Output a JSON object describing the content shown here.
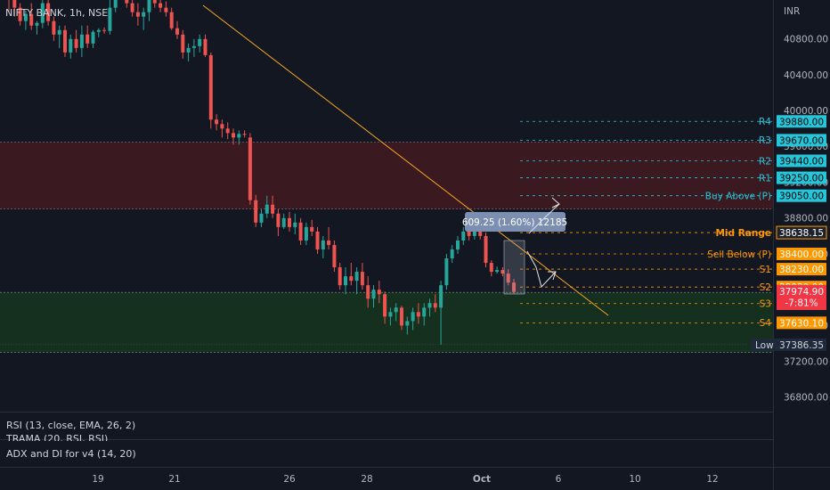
{
  "header": {
    "symbol": "NIFTY BANK, 1h, NSE",
    "currency": "INR"
  },
  "panes": {
    "rsi_label": "RSI (13, close, EMA, 26, 2)",
    "trama_label": "TRAMA (20, RSI, RSI)",
    "adx_label": "ADX and DI for v4 (14, 20)"
  },
  "colors": {
    "background": "#131722",
    "bull": "#26a69a",
    "bear": "#ef5350",
    "resistance_zone": "#3a1a20",
    "support_zone": "#15301e",
    "trendline": "#f5a623",
    "level_cyan": "#26c6da",
    "level_orange": "#ff9800",
    "pnl_red": "#f23645"
  },
  "chart_data": {
    "type": "candlestick",
    "symbol": "NIFTY BANK",
    "interval": "1h",
    "exchange": "NSE",
    "currency": "INR",
    "y_axis": {
      "range": [
        36600,
        41200
      ],
      "ticks": [
        "40800.00",
        "40400.00",
        "40000.00",
        "39600.00",
        "39200.00",
        "38800.00",
        "38400.00",
        "37600.00",
        "37200.00",
        "36800.00"
      ]
    },
    "x_axis": {
      "ticks": [
        "19",
        "21",
        "26",
        "28",
        "Oct",
        "6",
        "10",
        "12"
      ]
    },
    "candles": [
      [
        41300,
        41480,
        41100,
        41250
      ],
      [
        41250,
        41350,
        41050,
        41150
      ],
      [
        41150,
        41200,
        40950,
        41000
      ],
      [
        41000,
        41120,
        40900,
        41080
      ],
      [
        41080,
        41200,
        40900,
        40950
      ],
      [
        40950,
        41000,
        40850,
        40980
      ],
      [
        40980,
        41300,
        40920,
        41200
      ],
      [
        41200,
        41250,
        40950,
        41000
      ],
      [
        41000,
        41050,
        40780,
        40850
      ],
      [
        40850,
        40950,
        40700,
        40900
      ],
      [
        40900,
        40950,
        40600,
        40650
      ],
      [
        40650,
        40850,
        40580,
        40800
      ],
      [
        40800,
        40900,
        40650,
        40700
      ],
      [
        40700,
        40950,
        40600,
        40850
      ],
      [
        40850,
        40950,
        40700,
        40750
      ],
      [
        40750,
        40900,
        40700,
        40880
      ],
      [
        40880,
        40920,
        40820,
        40900
      ],
      [
        40900,
        40930,
        40860,
        40890
      ],
      [
        40890,
        41250,
        40850,
        41150
      ],
      [
        41150,
        41400,
        41100,
        41350
      ],
      [
        41350,
        41450,
        41250,
        41300
      ],
      [
        41300,
        41400,
        41150,
        41200
      ],
      [
        41200,
        41300,
        41050,
        41100
      ],
      [
        41100,
        41200,
        40950,
        41050
      ],
      [
        41050,
        41150,
        40900,
        41100
      ],
      [
        41100,
        41300,
        41000,
        41250
      ],
      [
        41250,
        41350,
        41150,
        41200
      ],
      [
        41200,
        41250,
        41100,
        41150
      ],
      [
        41150,
        41220,
        41050,
        41100
      ],
      [
        41100,
        41150,
        40900,
        40920
      ],
      [
        40920,
        41000,
        40800,
        40850
      ],
      [
        40850,
        40900,
        40580,
        40650
      ],
      [
        40650,
        40750,
        40550,
        40700
      ],
      [
        40700,
        40800,
        40600,
        40720
      ],
      [
        40720,
        40850,
        40650,
        40800
      ],
      [
        40800,
        40850,
        40600,
        40620
      ],
      [
        40620,
        40650,
        39800,
        39900
      ],
      [
        39900,
        39960,
        39780,
        39850
      ],
      [
        39850,
        39900,
        39700,
        39800
      ],
      [
        39800,
        39870,
        39680,
        39750
      ],
      [
        39750,
        39800,
        39620,
        39700
      ],
      [
        39700,
        39780,
        39620,
        39740
      ],
      [
        39740,
        39780,
        39700,
        39730
      ],
      [
        39700,
        39750,
        38950,
        39000
      ],
      [
        39000,
        39060,
        38700,
        38750
      ],
      [
        38750,
        38900,
        38700,
        38850
      ],
      [
        38850,
        39050,
        38800,
        38950
      ],
      [
        38950,
        39050,
        38800,
        38850
      ],
      [
        38850,
        38900,
        38600,
        38700
      ],
      [
        38700,
        38850,
        38680,
        38800
      ],
      [
        38800,
        38870,
        38650,
        38700
      ],
      [
        38700,
        38850,
        38620,
        38750
      ],
      [
        38750,
        38800,
        38500,
        38550
      ],
      [
        38550,
        38750,
        38500,
        38700
      ],
      [
        38700,
        38780,
        38600,
        38650
      ],
      [
        38650,
        38700,
        38400,
        38450
      ],
      [
        38450,
        38600,
        38350,
        38550
      ],
      [
        38550,
        38700,
        38450,
        38500
      ],
      [
        38500,
        38550,
        38200,
        38250
      ],
      [
        38250,
        38300,
        38000,
        38050
      ],
      [
        38050,
        38250,
        37950,
        38150
      ],
      [
        38150,
        38300,
        38050,
        38100
      ],
      [
        38100,
        38250,
        37950,
        38200
      ],
      [
        38200,
        38300,
        38000,
        38050
      ],
      [
        38050,
        38150,
        37800,
        37900
      ],
      [
        37900,
        38050,
        37800,
        38000
      ],
      [
        38000,
        38100,
        37850,
        37950
      ],
      [
        37950,
        37980,
        37620,
        37700
      ],
      [
        37700,
        37800,
        37600,
        37750
      ],
      [
        37750,
        37850,
        37650,
        37800
      ],
      [
        37800,
        37820,
        37550,
        37600
      ],
      [
        37600,
        37700,
        37500,
        37650
      ],
      [
        37650,
        37800,
        37550,
        37750
      ],
      [
        37750,
        37850,
        37620,
        37700
      ],
      [
        37700,
        37850,
        37600,
        37800
      ],
      [
        37800,
        37900,
        37700,
        37850
      ],
      [
        37850,
        37950,
        37750,
        37800
      ],
      [
        37800,
        38100,
        37386,
        38050
      ],
      [
        38050,
        38400,
        38000,
        38350
      ],
      [
        38350,
        38500,
        38300,
        38450
      ],
      [
        38450,
        38600,
        38400,
        38550
      ],
      [
        38550,
        38700,
        38500,
        38650
      ],
      [
        38650,
        38700,
        38550,
        38600
      ],
      [
        38600,
        38700,
        38560,
        38650
      ],
      [
        38650,
        38710,
        38560,
        38600
      ],
      [
        38600,
        38640,
        38250,
        38300
      ],
      [
        38300,
        38330,
        38150,
        38200
      ],
      [
        38200,
        38260,
        38180,
        38220
      ],
      [
        38220,
        38250,
        38150,
        38180
      ],
      [
        38180,
        38230,
        38050,
        38080
      ],
      [
        38080,
        38120,
        37960,
        37975
      ]
    ],
    "zones": [
      {
        "name": "resistance",
        "from": 38900,
        "to": 39650
      },
      {
        "name": "support",
        "from": 37300,
        "to": 37970
      }
    ],
    "levels": [
      {
        "label": "R4",
        "value": 39880.0,
        "value_text": "39880.00",
        "color": "cyan"
      },
      {
        "label": "R3",
        "value": 39670.0,
        "value_text": "39670.00",
        "color": "cyan"
      },
      {
        "label": "R2",
        "value": 39440.0,
        "value_text": "39440.00",
        "color": "cyan"
      },
      {
        "label": "R1",
        "value": 39250.0,
        "value_text": "39250.00",
        "color": "cyan"
      },
      {
        "label": "Buy Above (P)",
        "value": 39050.0,
        "value_text": "39050.00",
        "color": "cyan"
      },
      {
        "label": "Mid Range",
        "value": 38638.15,
        "value_text": "38638.15",
        "color": "orange",
        "label_bold": true,
        "tag_style": "dark"
      },
      {
        "label": "Sell Below (P)",
        "value": 38400.0,
        "value_text": "38400.00",
        "color": "orange"
      },
      {
        "label": "S1",
        "value": 38230.0,
        "value_text": "38230.00",
        "color": "orange"
      },
      {
        "label": "S2",
        "value": 38030.0,
        "value_text": "38030.00",
        "color": "orange"
      },
      {
        "label": "S3",
        "value": 37845.0,
        "value_text": "37845.00",
        "color": "orange"
      },
      {
        "label": "S4",
        "value": 37630.1,
        "value_text": "37630.10",
        "color": "orange"
      }
    ],
    "current_price": {
      "value": 37974.9,
      "text": "37974.90",
      "change_text": "-7:81%"
    },
    "low_marker": {
      "label": "Low",
      "value": 37386.35,
      "text": "37386.35"
    },
    "annotation": {
      "text": "609.25 (1.60%) 12185"
    }
  }
}
